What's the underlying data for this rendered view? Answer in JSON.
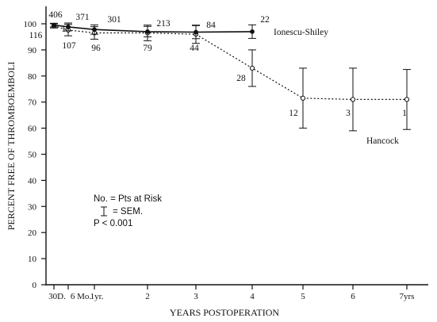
{
  "chart_data": {
    "type": "line",
    "ylabel": "PERCENT FREE OF THROMBOEMBOLI",
    "xlabel": "YEARS POSTOPERATION",
    "ylim": [
      0,
      100
    ],
    "yticks": [
      0,
      10,
      20,
      30,
      40,
      50,
      60,
      70,
      80,
      90,
      100
    ],
    "xticks": [
      {
        "x": 0.083,
        "label": "30D."
      },
      {
        "x": 0.5,
        "label": "6 Mo."
      },
      {
        "x": 1,
        "label": "1yr."
      },
      {
        "x": 2,
        "label": "2"
      },
      {
        "x": 3,
        "label": "3"
      },
      {
        "x": 4,
        "label": "4"
      },
      {
        "x": 5,
        "label": "5"
      },
      {
        "x": 6,
        "label": "6"
      },
      {
        "x": 7,
        "label": "7yrs"
      }
    ],
    "series": [
      {
        "name": "Ionescu-Shiley",
        "style": "solid",
        "marker": "filled-circle",
        "color": "#111111",
        "x": [
          0.083,
          0.5,
          1,
          2,
          3,
          4
        ],
        "y": [
          99.5,
          98.8,
          97.8,
          97.0,
          96.8,
          97.0
        ],
        "sem": [
          0.7,
          1.5,
          1.8,
          2.0,
          2.5,
          2.6
        ],
        "pts_at_risk": [
          "406",
          "",
          "371",
          "301",
          "213",
          "84",
          "22"
        ],
        "pts_at_risk_x": [
          0.083,
          0.5,
          1,
          1.5,
          2.5,
          3.4,
          4.6
        ]
      },
      {
        "name": "Hancock",
        "style": "dotted",
        "marker": "open-circle",
        "color": "#111111",
        "x": [
          0.083,
          0.5,
          1,
          2,
          3,
          4,
          5,
          6,
          7
        ],
        "y": [
          99.2,
          97.6,
          96.5,
          96.5,
          96.0,
          83.0,
          71.5,
          71.0,
          71.0
        ],
        "sem": [
          0.8,
          2.2,
          2.4,
          3.0,
          3.5,
          7.0,
          11.5,
          12.0,
          11.5
        ],
        "pts_at_risk": [
          "116",
          "1",
          "107",
          "96",
          "79",
          "44",
          "28",
          "12",
          "3",
          "1"
        ]
      }
    ],
    "annotations": {
      "ionescu_label": "Ionescu-Shiley",
      "hancock_label": "Hancock",
      "legend_line1": "No. = Pts at Risk",
      "legend_line2": "= SEM.",
      "legend_line3": "P < 0.001"
    },
    "grid": false
  }
}
